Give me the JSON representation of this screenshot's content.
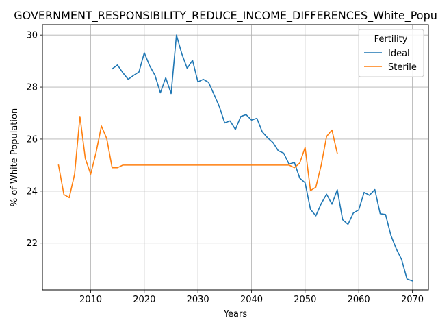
{
  "chart_data": {
    "type": "line",
    "title": "GOVERNMENT_RESPONSIBILITY_REDUCE_INCOME_DIFFERENCES_White_Population",
    "xlabel": "Years",
    "ylabel": "% of White Population",
    "xlim": [
      2001,
      2073
    ],
    "ylim": [
      20.2,
      30.4
    ],
    "xticks": [
      2010,
      2020,
      2030,
      2040,
      2050,
      2060,
      2070
    ],
    "yticks": [
      22,
      24,
      26,
      28,
      30
    ],
    "grid": true,
    "legend": {
      "title": "Fertility",
      "position": "top-right"
    },
    "series": [
      {
        "name": "Ideal",
        "color": "#1f77b4",
        "x": [
          2014,
          2015,
          2016,
          2017,
          2018,
          2019,
          2020,
          2021,
          2022,
          2023,
          2024,
          2025,
          2026,
          2027,
          2028,
          2029,
          2030,
          2031,
          2032,
          2033,
          2034,
          2035,
          2036,
          2037,
          2038,
          2039,
          2040,
          2041,
          2042,
          2043,
          2044,
          2045,
          2046,
          2047,
          2048,
          2049,
          2050,
          2051,
          2052,
          2053,
          2054,
          2055,
          2056,
          2057,
          2058,
          2059,
          2060,
          2061,
          2062,
          2063,
          2064,
          2065,
          2066,
          2067,
          2068,
          2069,
          2070
        ],
        "y": [
          28.7,
          28.85,
          28.55,
          28.3,
          28.45,
          28.58,
          29.32,
          28.82,
          28.45,
          27.78,
          28.36,
          27.75,
          30.0,
          29.28,
          28.72,
          29.03,
          28.2,
          28.3,
          28.18,
          27.72,
          27.25,
          26.62,
          26.7,
          26.37,
          26.87,
          26.94,
          26.73,
          26.8,
          26.28,
          26.05,
          25.87,
          25.55,
          25.46,
          25.04,
          25.1,
          24.5,
          24.32,
          23.3,
          23.05,
          23.52,
          23.88,
          23.5,
          24.05,
          22.9,
          22.72,
          23.16,
          23.28,
          23.95,
          23.84,
          24.06,
          23.13,
          23.1,
          22.3,
          21.78,
          21.37,
          20.62,
          20.55
        ]
      },
      {
        "name": "Sterile",
        "color": "#ff7f0e",
        "x": [
          2004,
          2005,
          2006,
          2007,
          2008,
          2009,
          2010,
          2011,
          2012,
          2013,
          2014,
          2015,
          2016,
          2017,
          2018,
          2019,
          2020,
          2021,
          2022,
          2023,
          2024,
          2025,
          2026,
          2027,
          2028,
          2029,
          2030,
          2031,
          2032,
          2033,
          2034,
          2035,
          2036,
          2037,
          2038,
          2039,
          2040,
          2041,
          2042,
          2043,
          2044,
          2045,
          2046,
          2047,
          2048,
          2049,
          2050,
          2051,
          2052,
          2053,
          2054,
          2055,
          2056
        ],
        "y": [
          25.0,
          23.87,
          23.75,
          24.65,
          26.87,
          25.25,
          24.65,
          25.48,
          26.5,
          26.02,
          24.9,
          24.9,
          25.0,
          25.0,
          25.0,
          25.0,
          25.0,
          25.0,
          25.0,
          25.0,
          25.0,
          25.0,
          25.0,
          25.0,
          25.0,
          25.0,
          25.0,
          25.0,
          25.0,
          25.0,
          25.0,
          25.0,
          25.0,
          25.0,
          25.0,
          25.0,
          25.0,
          25.0,
          25.0,
          25.0,
          25.0,
          25.0,
          25.0,
          25.0,
          24.9,
          25.08,
          25.68,
          24.02,
          24.15,
          25.0,
          26.1,
          26.35,
          25.45
        ]
      }
    ]
  }
}
